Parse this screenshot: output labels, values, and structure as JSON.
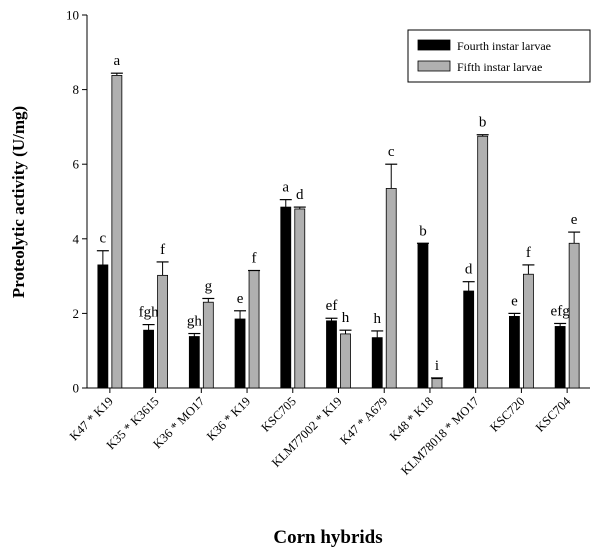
{
  "chart_data": {
    "type": "bar",
    "xlabel": "Corn hybrids",
    "ylabel": "Proteolytic activity (U/mg)",
    "ylim": [
      0,
      10
    ],
    "yticks": [
      0,
      2,
      4,
      6,
      8,
      10
    ],
    "legend_position": "top-right",
    "grid": false,
    "categories": [
      "K47 * K19",
      "K35 * K3615",
      "K36 * MO17",
      "K36 * K19",
      "KSC705",
      "KLM77002 * K19",
      "K47 * A679",
      "K48 * K18",
      "KLM78018 * MO17",
      "KSC720",
      "KSC704"
    ],
    "series": [
      {
        "name": "Fourth instar larvae",
        "color": "#000000",
        "values": [
          3.3,
          1.55,
          1.38,
          1.85,
          4.85,
          1.8,
          1.35,
          3.88,
          2.6,
          1.92,
          1.65
        ],
        "errors": [
          0.38,
          0.15,
          0.08,
          0.22,
          0.2,
          0.07,
          0.18,
          0.0,
          0.25,
          0.08,
          0.08
        ],
        "letters": [
          "c",
          "fgh",
          "gh",
          "e",
          "a",
          "ef",
          "h",
          "b",
          "d",
          "e",
          "efg"
        ]
      },
      {
        "name": "Fifth instar larvae",
        "color": "#b0b0b0",
        "values": [
          8.38,
          3.02,
          2.3,
          3.15,
          4.8,
          1.45,
          5.35,
          0.25,
          6.75,
          3.05,
          3.88
        ],
        "errors": [
          0.06,
          0.36,
          0.1,
          0.0,
          0.05,
          0.1,
          0.65,
          0.02,
          0.04,
          0.25,
          0.3
        ],
        "letters": [
          "a",
          "f",
          "g",
          "f",
          "d",
          "h",
          "c",
          "i",
          "b",
          "f",
          "e"
        ]
      }
    ]
  }
}
